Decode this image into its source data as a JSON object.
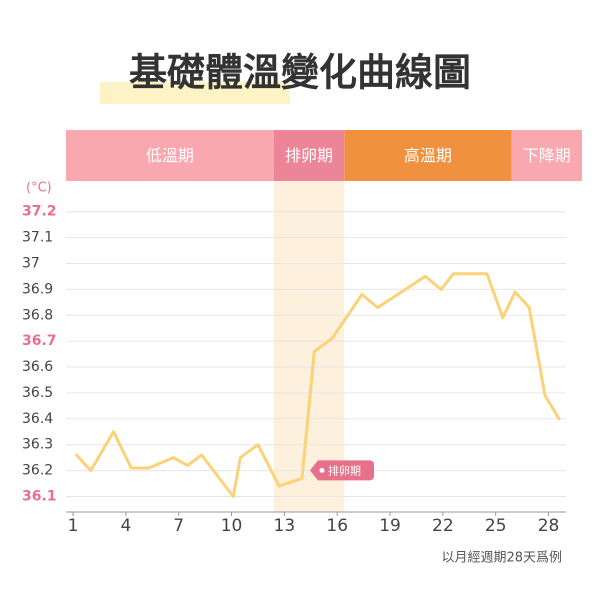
{
  "chart_data": {
    "type": "line",
    "title": "基礎體溫變化曲線圖",
    "y_unit": "(°C)",
    "footnote": "以月經週期28天爲例",
    "phases": [
      {
        "name": "低溫期",
        "start": 0.6,
        "end": 12.4,
        "color": "#f9a8af"
      },
      {
        "name": "排卵期",
        "start": 12.4,
        "end": 16.4,
        "color": "#ec8597"
      },
      {
        "name": "高溫期",
        "start": 16.4,
        "end": 25.9,
        "color": "#f0913f"
      },
      {
        "name": "下降期",
        "start": 25.9,
        "end": 29.9,
        "color": "#f9a8af"
      }
    ],
    "shaded_phase": 1,
    "shade_color": "#fdf0dc",
    "x": [
      1.2,
      2.0,
      3.3,
      4.3,
      5.3,
      6.7,
      7.5,
      8.3,
      10.1,
      10.5,
      11.5,
      12.7,
      14.0,
      14.7,
      15.7,
      17.4,
      18.3,
      21.0,
      21.9,
      22.6,
      24.5,
      25.4,
      26.1,
      26.9,
      27.8,
      28.6
    ],
    "values": [
      36.26,
      36.2,
      36.35,
      36.21,
      36.21,
      36.25,
      36.22,
      36.26,
      36.1,
      36.25,
      36.3,
      36.14,
      36.17,
      36.66,
      36.71,
      36.88,
      36.83,
      36.95,
      36.9,
      36.96,
      36.96,
      36.79,
      36.89,
      36.83,
      36.49,
      36.4
    ],
    "color": "#fbd277",
    "xlim": [
      0.6,
      29.9
    ],
    "ylim": [
      36.04,
      37.28
    ],
    "xticks": [
      1,
      4,
      7,
      10,
      13,
      16,
      19,
      22,
      25,
      28
    ],
    "yticks": [
      36.1,
      36.2,
      36.3,
      36.4,
      36.5,
      36.6,
      36.7,
      36.8,
      36.9,
      37.0,
      37.1,
      37.2
    ],
    "highlight_yticks": [
      36.1,
      36.7,
      37.2
    ],
    "highlight_color": "#e8708a",
    "grid": true,
    "annotation": {
      "text": "排卵期",
      "x": 14.0,
      "y": 36.17
    }
  }
}
